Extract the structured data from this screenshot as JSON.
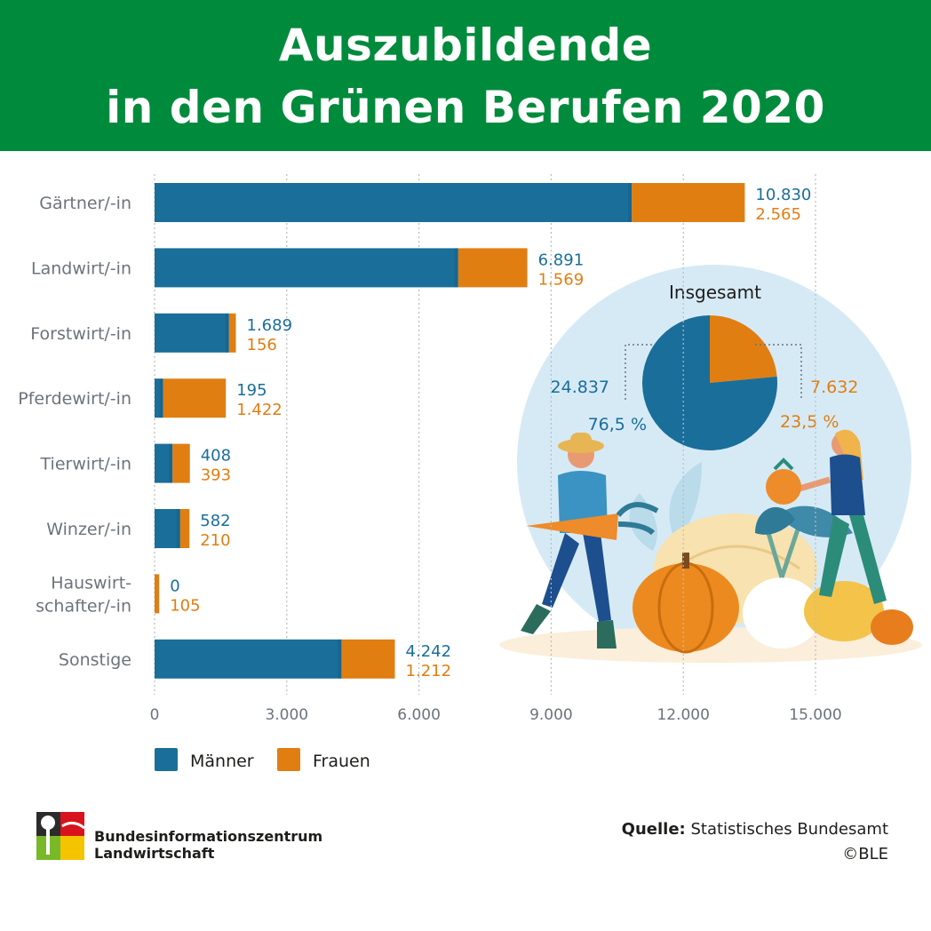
{
  "title": {
    "line1": "Auszubildende",
    "line2": "in den Grünen Berufen 2020"
  },
  "chart_data": {
    "type": "bar",
    "orientation": "horizontal",
    "stacked": true,
    "title": "Auszubildende in den Grünen Berufen 2020",
    "categories": [
      [
        "Gärtner/-in"
      ],
      [
        "Landwirt/-in"
      ],
      [
        "Forstwirt/-in"
      ],
      [
        "Pferdewirt/-in"
      ],
      [
        "Tierwirt/-in"
      ],
      [
        "Winzer/-in"
      ],
      [
        "Hauswirt-",
        "schafter/-in"
      ],
      [
        "Sonstige"
      ]
    ],
    "series": [
      {
        "name": "Männer",
        "color": "#1a6e9a",
        "values": [
          10830,
          6891,
          1689,
          195,
          408,
          582,
          0,
          4242
        ],
        "labels": [
          "10.830",
          "6.891",
          "1.689",
          "195",
          "408",
          "582",
          "0",
          "4.242"
        ]
      },
      {
        "name": "Frauen",
        "color": "#e07e12",
        "values": [
          2565,
          1569,
          156,
          1422,
          393,
          210,
          105,
          1212
        ],
        "labels": [
          "2.565",
          "1.569",
          "156",
          "1.422",
          "393",
          "210",
          "105",
          "1.212"
        ]
      }
    ],
    "xlim": [
      0,
      15000
    ],
    "xticks": [
      0,
      3000,
      6000,
      9000,
      12000,
      15000
    ],
    "xtick_labels": [
      "0",
      "3.000",
      "6.000",
      "9.000",
      "12.000",
      "15.000"
    ],
    "grid": "vertical dotted",
    "legend": "bottom-left"
  },
  "pie": {
    "type": "pie",
    "title": "Insgesamt",
    "slices": [
      {
        "name": "Männer",
        "value": 24837,
        "label": "24.837",
        "percent_label": "76,5 %",
        "color": "#1a6e9a"
      },
      {
        "name": "Frauen",
        "value": 7632,
        "label": "7.632",
        "percent_label": "23,5 %",
        "color": "#e07e12"
      }
    ]
  },
  "footer": {
    "org_line1": "Bundesinformationszentrum",
    "org_line2": "Landwirtschaft",
    "source_label": "Quelle:",
    "source_text": "Statistisches Bundesamt",
    "copyright": "©BLE"
  },
  "colors": {
    "header_green": "#008b3c",
    "men_blue": "#1a6e9a",
    "women_orange": "#e07e12",
    "circle_bg": "#d6eaf6"
  }
}
